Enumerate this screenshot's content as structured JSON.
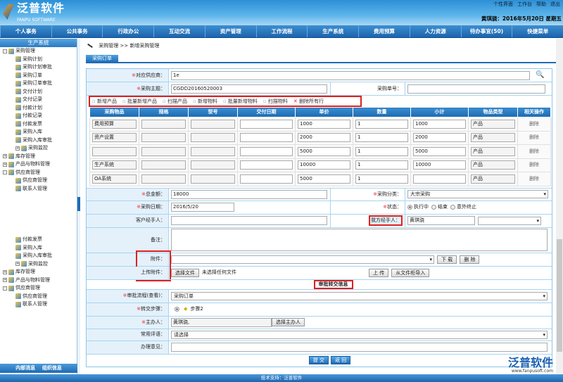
{
  "header": {
    "logo_cn": "泛普软件",
    "logo_en": "FANPU SOFTWARE",
    "links": [
      "个性界面",
      "工作台",
      "帮助",
      "退出"
    ],
    "user_date": "黄琪骁：2016年5月20日 星期五"
  },
  "nav": [
    "个人事务",
    "公共事务",
    "行政办公",
    "互动交流",
    "资产管理",
    "工作流程",
    "生产系统",
    "费用预算",
    "人力资源",
    "待办事宜(50)",
    "快捷菜单"
  ],
  "sidebar": {
    "title": "生产系统",
    "tree": [
      {
        "label": "采购管理",
        "level": 0,
        "toggle": "-"
      },
      {
        "label": "采购计划",
        "level": 1
      },
      {
        "label": "采购计划审批",
        "level": 1
      },
      {
        "label": "采购订单",
        "level": 1
      },
      {
        "label": "采购订单审批",
        "level": 1
      },
      {
        "label": "交付计划",
        "level": 1
      },
      {
        "label": "交付记录",
        "level": 1
      },
      {
        "label": "付款计划",
        "level": 1
      },
      {
        "label": "付款记录",
        "level": 1
      },
      {
        "label": "付款发票",
        "level": 1
      },
      {
        "label": "采购入库",
        "level": 1
      },
      {
        "label": "采购入库审批",
        "level": 1
      },
      {
        "label": "采购监控",
        "level": 1,
        "toggle": "+"
      },
      {
        "label": "库存管理",
        "level": 0,
        "toggle": "+"
      },
      {
        "label": "产品与物料管理",
        "level": 0,
        "toggle": "+"
      },
      {
        "label": "供应商管理",
        "level": 0,
        "toggle": "-"
      },
      {
        "label": "供应商管理",
        "level": 1
      },
      {
        "label": "联系人管理",
        "level": 1
      }
    ],
    "tree2": [
      {
        "label": "付款发票",
        "level": 1
      },
      {
        "label": "采购入库",
        "level": 1
      },
      {
        "label": "采购入库审批",
        "level": 1
      },
      {
        "label": "采购监控",
        "level": 1,
        "toggle": "+"
      },
      {
        "label": "库存管理",
        "level": 0,
        "toggle": "+"
      },
      {
        "label": "产品与物料管理",
        "level": 0,
        "toggle": "+"
      },
      {
        "label": "供应商管理",
        "level": 0,
        "toggle": "-"
      },
      {
        "label": "供应商管理",
        "level": 1
      },
      {
        "label": "联系人管理",
        "level": 1
      }
    ],
    "bottom": [
      "内部消息",
      "组织信息"
    ]
  },
  "breadcrumb": {
    "parent": "采购管理",
    "sep": ">>",
    "current": "新增采购管理"
  },
  "tab": "采购订单",
  "form": {
    "supplier_label": "对应供应商：",
    "supplier": "1e",
    "subject_label": "采购主题：",
    "subject": "CGDD20160520003",
    "order_no_label": "采购单号：",
    "order_no": "",
    "toolbar": [
      "新增产品",
      "批量新增产品",
      "扫描产品",
      "新增物料",
      "批量新增物料",
      "扫描物料",
      "删除所有行"
    ],
    "columns": [
      "采购物品",
      "规格",
      "型号",
      "交付日期",
      "单价",
      "数量",
      "小计",
      "物品类型",
      "相关操作"
    ],
    "rows": [
      {
        "item": "费用预算",
        "spec": "",
        "model": "",
        "date": "",
        "price": "1000",
        "qty": "1",
        "subtotal": "1000",
        "type": "产品",
        "op": "删除"
      },
      {
        "item": "资产设置",
        "spec": "",
        "model": "",
        "date": "",
        "price": "2000",
        "qty": "1",
        "subtotal": "2000",
        "type": "产品",
        "op": "删除"
      },
      {
        "item": "",
        "spec": "",
        "model": "",
        "date": "",
        "price": "5000",
        "qty": "1",
        "subtotal": "5000",
        "type": "产品",
        "op": "删除"
      },
      {
        "item": "生产系统",
        "spec": "",
        "model": "",
        "date": "",
        "price": "10000",
        "qty": "1",
        "subtotal": "10000",
        "type": "产品",
        "op": "删除"
      },
      {
        "item": "OA系统",
        "spec": "",
        "model": "",
        "date": "",
        "price": "5000",
        "qty": "1",
        "subtotal": "",
        "type": "产品",
        "op": "删除"
      }
    ],
    "total_label": "总金额：",
    "total": "18000",
    "category_label": "采购分类：",
    "category": "大宗采购",
    "date_label": "采购日期：",
    "date": "2016/5/20",
    "status_label": "状态：",
    "status_options": [
      "执行中",
      "结束",
      "意外终止"
    ],
    "status_selected": "执行中",
    "customer_handler_label": "客户经手人：",
    "customer_handler": "",
    "our_handler_label": "我方经手人：",
    "our_handler": "黄琪骁",
    "remark_label": "备注：",
    "remark": "",
    "attachment_label": "附件：",
    "download": "下 载",
    "delete": "删 除",
    "upload_label": "上传附件：",
    "choose_file": "选择文件",
    "no_file": "未选择任何文件",
    "upload": "上 传",
    "import": "从文件柜导入",
    "approval_title": "审批转交信息",
    "flow_label": "审批流程(查看)：",
    "flow": "采购订单",
    "step_label": "转交步骤：",
    "step": "步骤2",
    "host_label": "主办人：",
    "host": "黄琪骁,",
    "choose_host": "选择主办人",
    "comment_label": "常用评语：",
    "comment": "请选择",
    "opinion_label": "办理意见：",
    "opinion": "",
    "submit": "提 交",
    "back": "返 回"
  },
  "footer": "技术支持：泛普软件",
  "watermark": {
    "text": "泛普软件",
    "url": "www.fanpusoft.com"
  }
}
